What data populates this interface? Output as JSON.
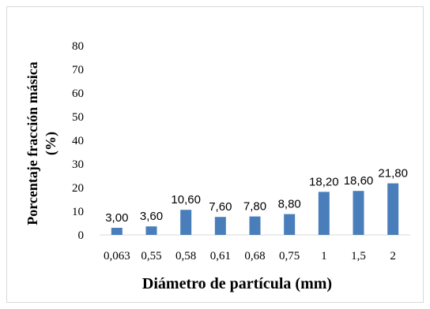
{
  "chart_data": {
    "type": "bar",
    "categories": [
      "0,063",
      "0,55",
      "0,58",
      "0,61",
      "0,68",
      "0,75",
      "1",
      "1,5",
      "2"
    ],
    "values": [
      3.0,
      3.6,
      10.6,
      7.6,
      7.8,
      8.8,
      18.2,
      18.6,
      21.8
    ],
    "data_labels": [
      "3,00",
      "3,60",
      "10,60",
      "7,60",
      "7,80",
      "8,80",
      "18,20",
      "18,60",
      "21,80"
    ],
    "xlabel": "Diámetro de partícula (mm)",
    "ylabel_line1": "Porcentaje fracción másica",
    "ylabel_line2": "(%)",
    "ylim": [
      0,
      80
    ],
    "yticks": [
      "0",
      "10",
      "20",
      "30",
      "40",
      "50",
      "60",
      "70",
      "80"
    ],
    "grid": false,
    "bar_color": "#4a7ebb"
  }
}
